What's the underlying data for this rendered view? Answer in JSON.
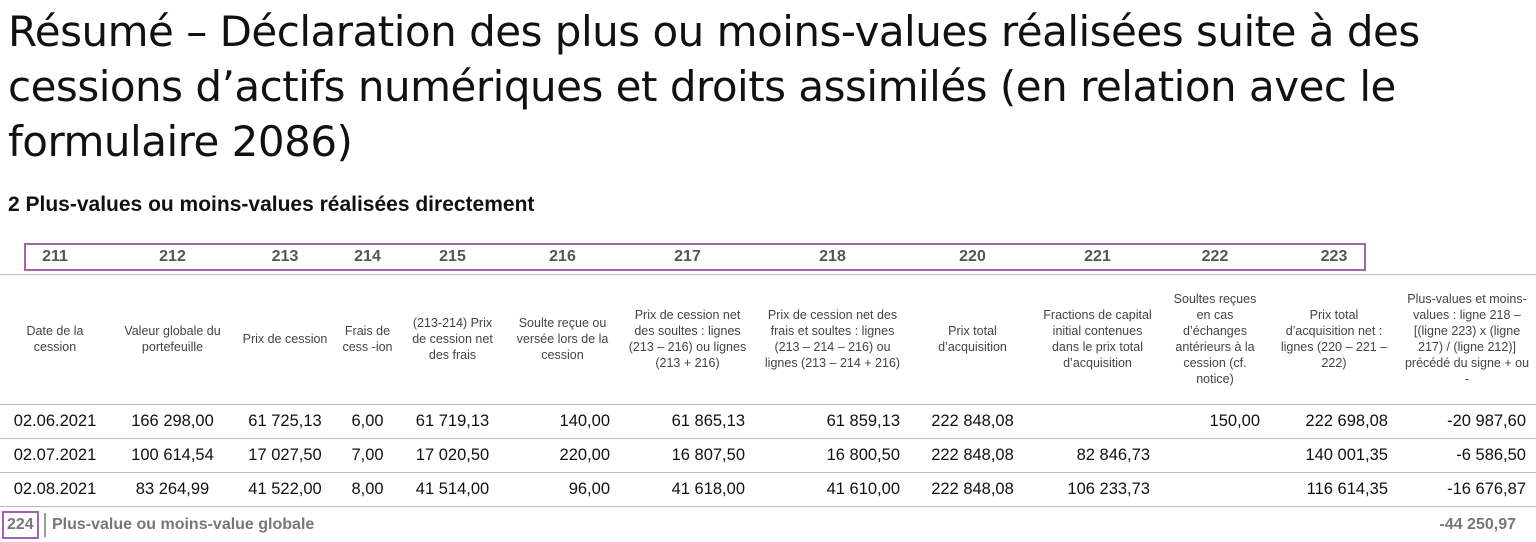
{
  "header": {
    "title": "Résumé – Déclaration des plus ou moins-values réalisées suite à des cessions d’actifs numériques et droits assimilés (en relation avec le formulaire 2086)"
  },
  "section": {
    "title": "2 Plus-values ou moins-values réalisées directement"
  },
  "table": {
    "codes": [
      "211",
      "212",
      "213",
      "214",
      "215",
      "216",
      "217",
      "218",
      "220",
      "221",
      "222",
      "223"
    ],
    "header": [
      "Date de la cession",
      "Valeur globale du portefeuille",
      "Prix de cession",
      "Frais de cess -ion",
      "(213-214) Prix de cession net des frais",
      "Soulte reçue ou versée lors de la cession",
      "Prix de cession net des soultes : lignes (213 – 216) ou lignes (213 + 216)",
      "Prix de cession net des frais et soultes : lignes (213 – 214 – 216) ou lignes (213 – 214 + 216)",
      "Prix total d’acquisition",
      "Fractions de capital initial contenues dans le prix total d’acquisition",
      "Soultes reçues en cas d’échanges antérieurs à la cession (cf. notice)",
      "Prix total d’acquisition net : lignes (220 – 221 – 222)",
      "Plus-values et moins-values : ligne 218 – [(ligne 223) x (ligne 217) / (ligne 212)] précédé du signe + ou -"
    ],
    "rows": [
      [
        "02.06.2021",
        "166 298,00",
        "61 725,13",
        "6,00",
        "61 719,13",
        "140,00",
        "61 865,13",
        "61 859,13",
        "222 848,08",
        null,
        "150,00",
        "222 698,08",
        "-20 987,60"
      ],
      [
        "02.07.2021",
        "100 614,54",
        "17 027,50",
        "7,00",
        "17 020,50",
        "220,00",
        "16 807,50",
        "16 800,50",
        "222 848,08",
        "82 846,73",
        null,
        "140 001,35",
        "-6 586,50"
      ],
      [
        "02.08.2021",
        "83 264,99",
        "41 522,00",
        "8,00",
        "41 514,00",
        "96,00",
        "41 618,00",
        "41 610,00",
        "222 848,08",
        "106 233,73",
        null,
        "116 614,35",
        "-16 676,87"
      ]
    ],
    "footer": {
      "code": "224",
      "label": "Plus-value ou moins-value globale",
      "value": "-44 250,97"
    }
  }
}
